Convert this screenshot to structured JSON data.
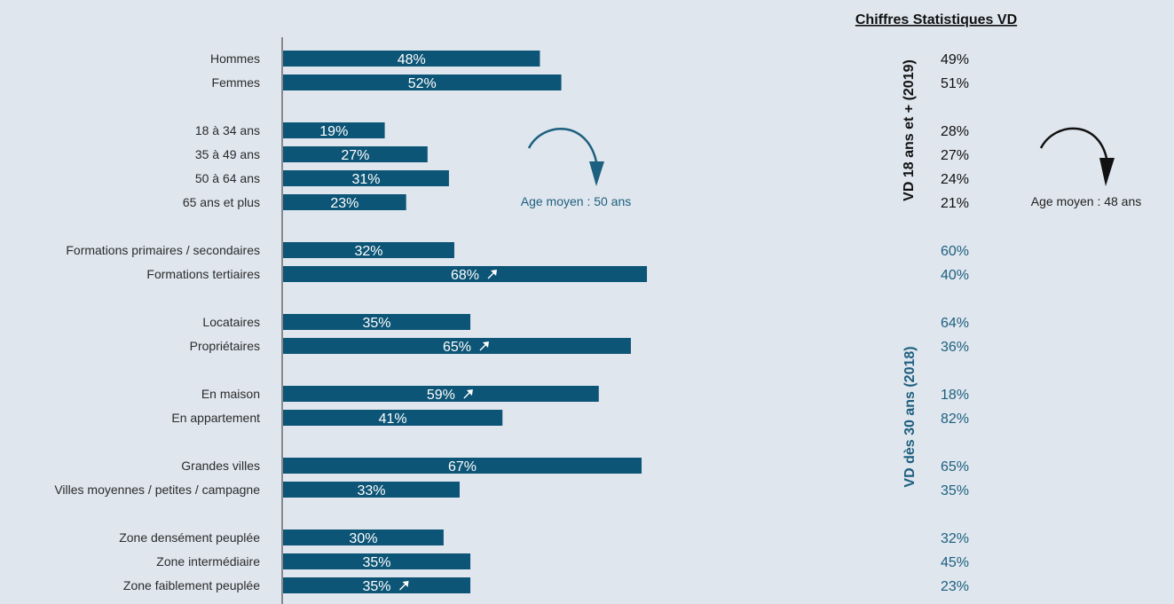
{
  "stats_header": "Chiffres Statistiques VD",
  "vertical_label_top": "VD 18 ans et + (2019)",
  "vertical_label_bottom": "VD dès 30 ans (2018)",
  "age_note_left": "Age moyen : 50 ans",
  "age_note_right": "Age moyen : 48 ans",
  "trend_icon": "north-east-arrow",
  "colors": {
    "bar": "#0d5576",
    "blue_text": "#1d5f7e",
    "background": "#dfe6ee"
  },
  "chart_data": {
    "type": "bar",
    "orientation": "horizontal",
    "xlim": [
      0,
      100
    ],
    "categories": [
      "Hommes",
      "Femmes",
      "18 à 34 ans",
      "35 à 49 ans",
      "50 à 64 ans",
      "65 ans et plus",
      "Formations primaires / secondaires",
      "Formations tertiaires",
      "Locataires",
      "Propriétaires",
      "En maison",
      "En appartement",
      "Grandes villes",
      "Villes moyennes / petites / campagne",
      "Zone densément peuplée",
      "Zone intermédiaire",
      "Zone faiblement peuplée"
    ],
    "values": [
      48,
      52,
      19,
      27,
      31,
      23,
      32,
      68,
      35,
      65,
      59,
      41,
      67,
      33,
      30,
      35,
      35
    ],
    "value_labels": [
      "48%",
      "52%",
      "19%",
      "27%",
      "31%",
      "23%",
      "32%",
      "68%",
      "35%",
      "65%",
      "59%",
      "41%",
      "67%",
      "33%",
      "30%",
      "35%",
      "35%"
    ],
    "trend_up": [
      false,
      false,
      false,
      false,
      false,
      false,
      false,
      true,
      false,
      true,
      true,
      false,
      false,
      false,
      false,
      false,
      true
    ],
    "groups": [
      2,
      4,
      2,
      2,
      2,
      2,
      3
    ],
    "stats_values": [
      "49%",
      "51%",
      "28%",
      "27%",
      "24%",
      "21%",
      "60%",
      "40%",
      "64%",
      "36%",
      "18%",
      "82%",
      "65%",
      "35%",
      "32%",
      "45%",
      "23%"
    ],
    "stats_source": [
      "top",
      "top",
      "top",
      "top",
      "top",
      "top",
      "bottom",
      "bottom",
      "bottom",
      "bottom",
      "bottom",
      "bottom",
      "bottom",
      "bottom",
      "bottom",
      "bottom",
      "bottom"
    ]
  }
}
